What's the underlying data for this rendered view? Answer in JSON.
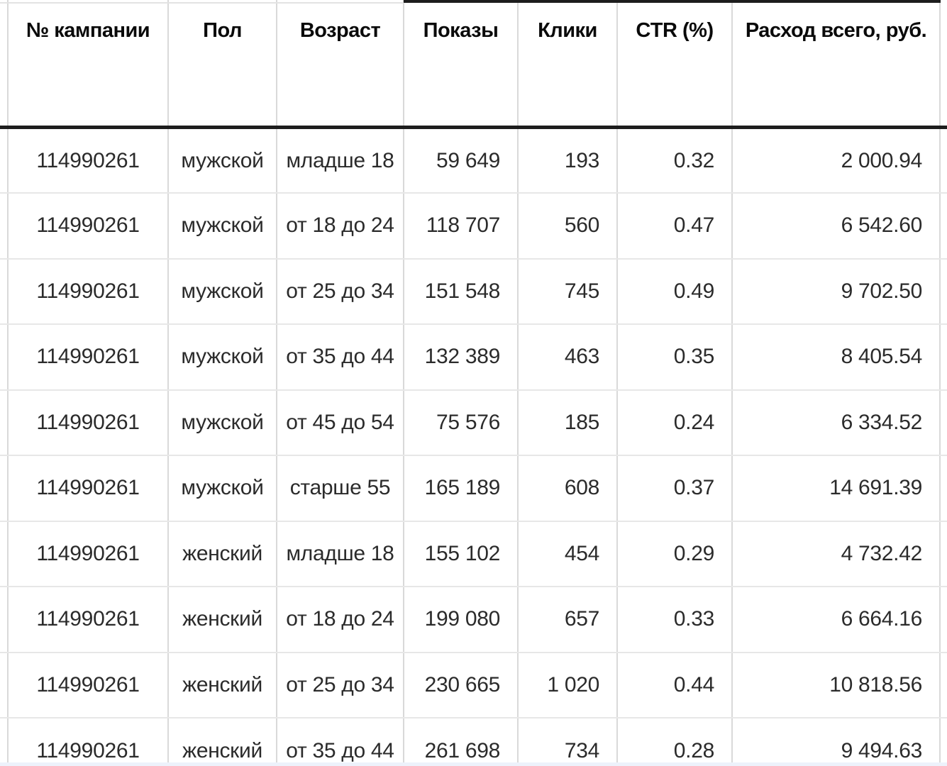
{
  "table": {
    "columns": [
      {
        "key": "campaign",
        "label": "№ кампании"
      },
      {
        "key": "gender",
        "label": "Пол"
      },
      {
        "key": "age",
        "label": "Возраст"
      },
      {
        "key": "impressions",
        "label": "Показы"
      },
      {
        "key": "clicks",
        "label": "Клики"
      },
      {
        "key": "ctr",
        "label": "CTR (%)"
      },
      {
        "key": "cost",
        "label": "Расход всего, руб."
      }
    ],
    "rows": [
      [
        "114990261",
        "мужской",
        "младше 18",
        "59 649",
        "193",
        "0.32",
        "2 000.94"
      ],
      [
        "114990261",
        "мужской",
        "от 18 до 24",
        "118 707",
        "560",
        "0.47",
        "6 542.60"
      ],
      [
        "114990261",
        "мужской",
        "от 25 до 34",
        "151 548",
        "745",
        "0.49",
        "9 702.50"
      ],
      [
        "114990261",
        "мужской",
        "от 35 до 44",
        "132 389",
        "463",
        "0.35",
        "8 405.54"
      ],
      [
        "114990261",
        "мужской",
        "от 45 до 54",
        "75 576",
        "185",
        "0.24",
        "6 334.52"
      ],
      [
        "114990261",
        "мужской",
        "старше 55",
        "165 189",
        "608",
        "0.37",
        "14 691.39"
      ],
      [
        "114990261",
        "женский",
        "младше 18",
        "155 102",
        "454",
        "0.29",
        "4 732.42"
      ],
      [
        "114990261",
        "женский",
        "от 18 до 24",
        "199 080",
        "657",
        "0.33",
        "6 664.16"
      ],
      [
        "114990261",
        "женский",
        "от 25 до 34",
        "230 665",
        "1 020",
        "0.44",
        "10 818.56"
      ],
      [
        "114990261",
        "женский",
        "от 35 до 44",
        "261 698",
        "734",
        "0.28",
        "9 494.63"
      ]
    ]
  },
  "colors": {
    "background": "#ffffff",
    "header_text": "#0a0a0a",
    "cell_text": "#2b2b2b",
    "header_underline": "#1d1d1d",
    "grid_vertical": "#d9d9d9",
    "grid_horizontal": "#e7e7e7",
    "bottom_strip": "#edf2fb"
  }
}
